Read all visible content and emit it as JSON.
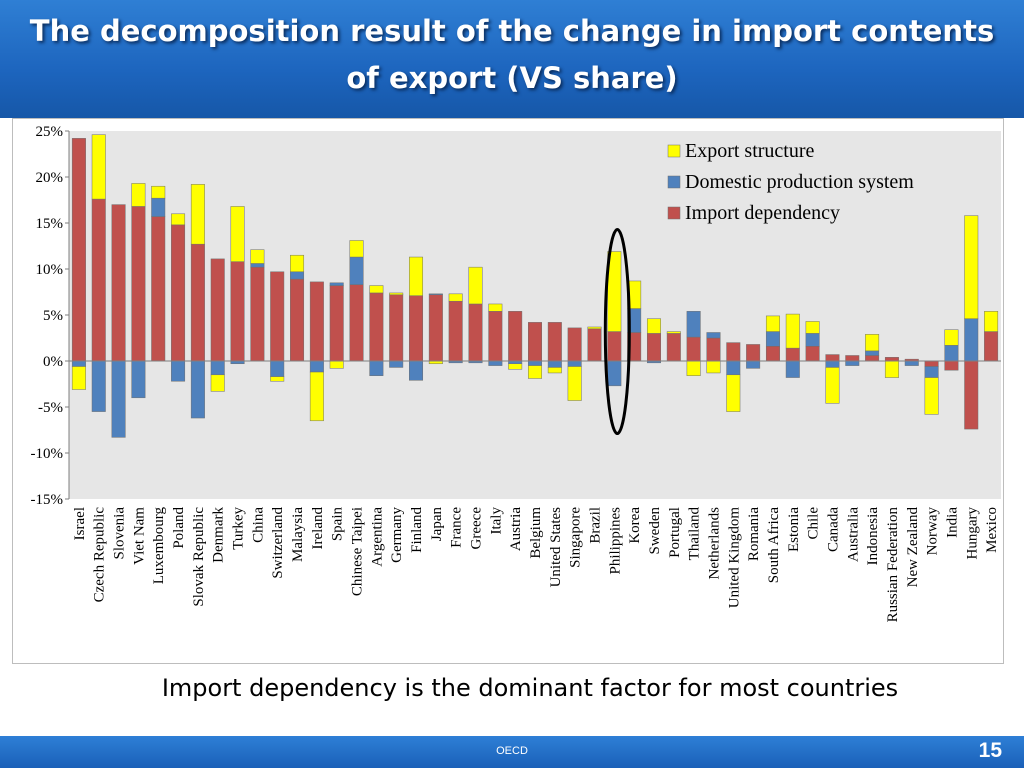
{
  "slide": {
    "title_line1": "The decomposition result of the change in import contents",
    "title_line2": "of export (VS share)",
    "caption": "Import dependency is the dominant factor for most countries",
    "footer_org": "OECD",
    "page_number": "15"
  },
  "chart_data": {
    "type": "bar",
    "stacked": true,
    "title": "",
    "xlabel": "",
    "ylabel": "",
    "ylim": [
      -15,
      25
    ],
    "yticks": [
      "25%",
      "20%",
      "15%",
      "10%",
      "5%",
      "0%",
      "-5%",
      "-10%",
      "-15%"
    ],
    "legend_position": "top-right",
    "highlighted_category": "Philippines",
    "colors": {
      "Export structure": "#ffff00",
      "Domestic production system": "#4f81bd",
      "Import dependency": "#c0504d"
    },
    "categories": [
      "Israel",
      "Czech Republic",
      "Slovenia",
      "Viet Nam",
      "Luxembourg",
      "Poland",
      "Slovak Republic",
      "Denmark",
      "Turkey",
      "China",
      "Switzerland",
      "Malaysia",
      "Ireland",
      "Spain",
      "Chinese Taipei",
      "Argentina",
      "Germany",
      "Finland",
      "Japan",
      "France",
      "Greece",
      "Italy",
      "Austria",
      "Belgium",
      "United States",
      "Singapore",
      "Brazil",
      "Philippines",
      "Korea",
      "Sweden",
      "Portugal",
      "Thailand",
      "Netherlands",
      "United Kingdom",
      "Romania",
      "South Africa",
      "Estonia",
      "Chile",
      "Canada",
      "Australia",
      "Indonesia",
      "Russian Federation",
      "New Zealand",
      "Norway",
      "India",
      "Hungary",
      "Mexico"
    ],
    "series": [
      {
        "name": "Export structure",
        "values": [
          -2.5,
          7,
          0,
          2.5,
          1.3,
          1.2,
          6.5,
          -1.8,
          6,
          1.5,
          -0.5,
          1.8,
          -5.3,
          -0.8,
          1.8,
          0.8,
          0.2,
          4.2,
          -0.3,
          0.8,
          4,
          0.8,
          -0.6,
          -1.4,
          -0.6,
          -3.7,
          0.2,
          8.7,
          3,
          1.6,
          0.2,
          -1.6,
          -1.3,
          -4,
          0,
          1.7,
          3.7,
          1.3,
          -3.9,
          0,
          1.8,
          -1.8,
          0,
          -4,
          1.7,
          11.2,
          2.2
        ]
      },
      {
        "name": "Domestic production system",
        "values": [
          -0.6,
          -5.5,
          -8.3,
          -4,
          2,
          -2.2,
          -6.2,
          -1.5,
          -0.3,
          0.4,
          -1.7,
          0.8,
          -1.2,
          0.3,
          3,
          -1.6,
          -0.7,
          -2.1,
          0.1,
          -0.2,
          -0.2,
          -0.5,
          -0.3,
          -0.5,
          -0.7,
          -0.6,
          0,
          -2.7,
          2.6,
          -0.2,
          0,
          2.8,
          0.6,
          -1.5,
          -0.8,
          1.6,
          -1.8,
          1.4,
          -0.7,
          -0.5,
          0.5,
          0,
          -0.5,
          -1.2,
          1.7,
          4.6,
          0
        ]
      },
      {
        "name": "Import dependency",
        "values": [
          24.2,
          17.6,
          17,
          16.8,
          15.7,
          14.8,
          12.7,
          11.1,
          10.8,
          10.2,
          9.7,
          8.9,
          8.6,
          8.2,
          8.3,
          7.4,
          7.2,
          7.1,
          7.2,
          6.5,
          6.2,
          5.4,
          5.4,
          4.2,
          4.2,
          3.6,
          3.5,
          3.2,
          3.1,
          3,
          3,
          2.6,
          2.5,
          2,
          1.8,
          1.6,
          1.4,
          1.6,
          0.7,
          0.6,
          0.6,
          0.4,
          0.2,
          -0.6,
          -1,
          -7.4,
          3.2
        ]
      }
    ]
  }
}
